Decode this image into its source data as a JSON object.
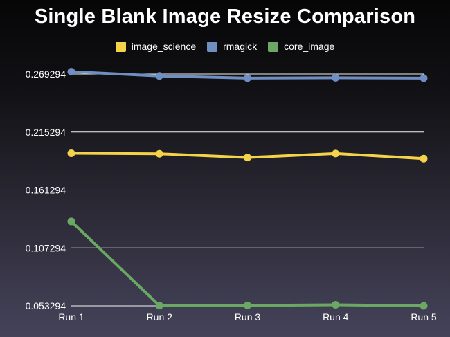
{
  "chart_data": {
    "type": "line",
    "title": "Single Blank Image Resize Comparison",
    "xlabel": "",
    "ylabel": "",
    "categories": [
      "Run 1",
      "Run 2",
      "Run 3",
      "Run 4",
      "Run 5"
    ],
    "yticks": [
      "0.053294",
      "0.107294",
      "0.161294",
      "0.215294",
      "0.269294"
    ],
    "ylim": [
      0.053294,
      0.269294
    ],
    "grid": true,
    "legend_position": "top-center",
    "series": [
      {
        "name": "image_science",
        "color": "#f4d24a",
        "values": [
          0.1955,
          0.195,
          0.1915,
          0.1952,
          0.1905
        ]
      },
      {
        "name": "rmagick",
        "color": "#6f8fc2",
        "values": [
          0.2715,
          0.2675,
          0.2655,
          0.2658,
          0.2655
        ]
      },
      {
        "name": "core_image",
        "color": "#6aa864",
        "values": [
          0.132,
          0.0535,
          0.0537,
          0.0543,
          0.0533
        ]
      }
    ]
  }
}
